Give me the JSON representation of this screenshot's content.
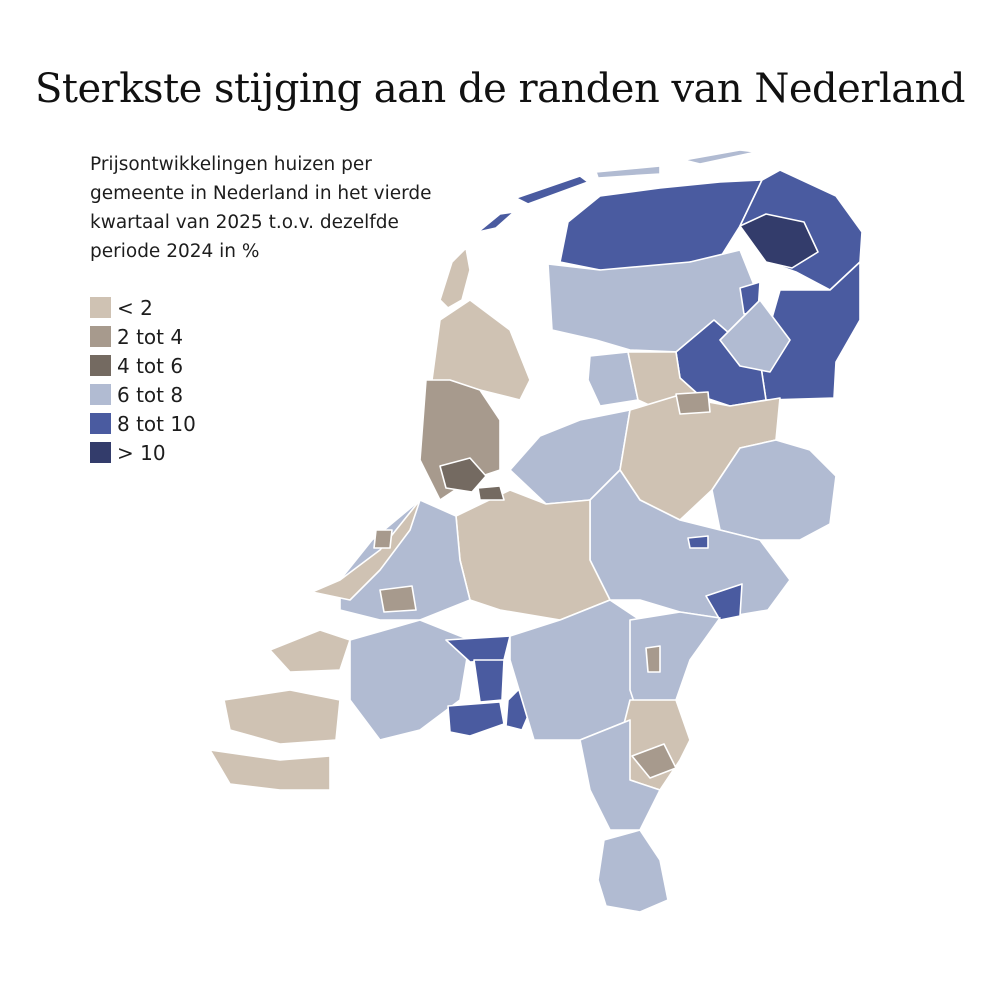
{
  "title": "Sterkste stijging aan de randen van Nederland",
  "subtitle": "Prijsontwikkelingen huizen per gemeente in Nederland in het vierde kwartaal van 2025 t.o.v. dezelfde periode 2024 in %",
  "legend": [
    {
      "label": "< 2",
      "color": "#cfc2b3"
    },
    {
      "label": "2 tot 4",
      "color": "#a79a8d"
    },
    {
      "label": "4 tot 6",
      "color": "#746a61"
    },
    {
      "label": "6 tot 8",
      "color": "#b1bbd2"
    },
    {
      "label": "8 tot 10",
      "color": "#4a5ba0"
    },
    {
      "label": "> 10",
      "color": "#333c6b"
    }
  ]
}
